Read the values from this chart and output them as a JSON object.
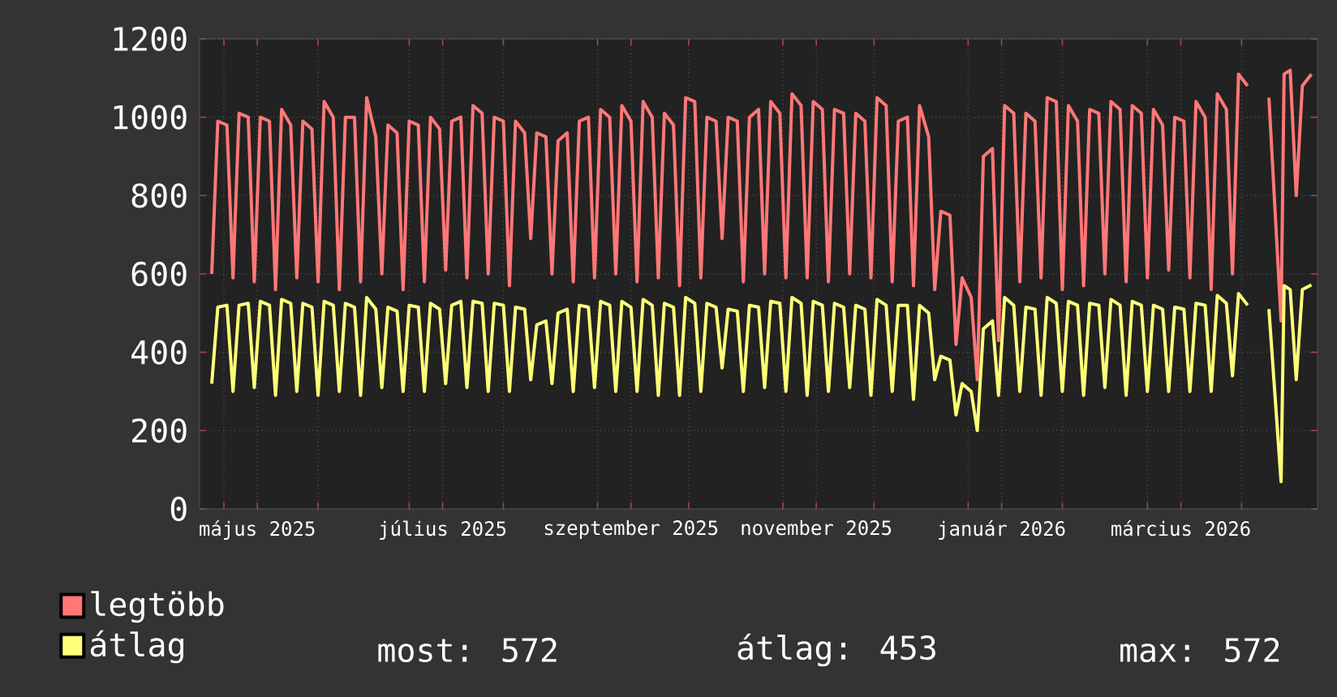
{
  "chart_data": {
    "type": "line",
    "x": [
      "2025-04-27",
      "2025-04-29",
      "2025-05-02",
      "2025-05-04",
      "2025-05-06",
      "2025-05-09",
      "2025-05-11",
      "2025-05-13",
      "2025-05-16",
      "2025-05-18",
      "2025-05-20",
      "2025-05-23",
      "2025-05-25",
      "2025-05-27",
      "2025-05-30",
      "2025-06-01",
      "2025-06-03",
      "2025-06-06",
      "2025-06-08",
      "2025-06-10",
      "2025-06-13",
      "2025-06-15",
      "2025-06-17",
      "2025-06-20",
      "2025-06-22",
      "2025-06-24",
      "2025-06-27",
      "2025-06-29",
      "2025-07-01",
      "2025-07-04",
      "2025-07-06",
      "2025-07-08",
      "2025-07-11",
      "2025-07-13",
      "2025-07-15",
      "2025-07-18",
      "2025-07-20",
      "2025-07-22",
      "2025-07-25",
      "2025-07-27",
      "2025-07-29",
      "2025-08-01",
      "2025-08-03",
      "2025-08-05",
      "2025-08-08",
      "2025-08-10",
      "2025-08-12",
      "2025-08-15",
      "2025-08-17",
      "2025-08-19",
      "2025-08-22",
      "2025-08-24",
      "2025-08-26",
      "2025-08-29",
      "2025-08-31",
      "2025-09-02",
      "2025-09-05",
      "2025-09-07",
      "2025-09-09",
      "2025-09-12",
      "2025-09-14",
      "2025-09-16",
      "2025-09-19",
      "2025-09-21",
      "2025-09-23",
      "2025-09-26",
      "2025-09-28",
      "2025-09-30",
      "2025-10-03",
      "2025-10-05",
      "2025-10-07",
      "2025-10-10",
      "2025-10-12",
      "2025-10-14",
      "2025-10-17",
      "2025-10-19",
      "2025-10-21",
      "2025-10-24",
      "2025-10-26",
      "2025-10-28",
      "2025-10-31",
      "2025-11-02",
      "2025-11-04",
      "2025-11-07",
      "2025-11-09",
      "2025-11-11",
      "2025-11-14",
      "2025-11-16",
      "2025-11-18",
      "2025-11-21",
      "2025-11-23",
      "2025-11-25",
      "2025-11-28",
      "2025-11-30",
      "2025-12-02",
      "2025-12-05",
      "2025-12-07",
      "2025-12-09",
      "2025-12-12",
      "2025-12-14",
      "2025-12-16",
      "2025-12-19",
      "2025-12-21",
      "2025-12-23",
      "2025-12-26",
      "2025-12-28",
      "2025-12-30",
      "2026-01-02",
      "2026-01-04",
      "2026-01-06",
      "2026-01-09",
      "2026-01-11",
      "2026-01-13",
      "2026-01-16",
      "2026-01-18",
      "2026-01-20",
      "2026-01-23",
      "2026-01-25",
      "2026-01-27",
      "2026-01-30",
      "2026-02-01",
      "2026-02-03",
      "2026-02-06",
      "2026-02-08",
      "2026-02-10",
      "2026-02-13",
      "2026-02-15",
      "2026-02-17",
      "2026-02-20",
      "2026-02-22",
      "2026-02-24",
      "2026-02-27",
      "2026-03-01",
      "2026-03-03",
      "2026-03-06",
      "2026-03-08",
      "2026-03-10",
      "2026-03-13",
      "2026-03-15",
      "2026-03-17",
      "2026-03-20",
      "2026-03-22",
      "2026-03-24",
      "2026-03-27",
      "2026-03-29",
      "2026-03-31",
      "2026-04-03",
      "2026-04-05",
      "2026-04-07",
      "2026-04-10",
      "2026-04-14",
      "2026-04-15",
      "2026-04-17",
      "2026-04-19",
      "2026-04-21",
      "2026-04-24"
    ],
    "series": [
      {
        "name": "legtöbb",
        "color": "#ff7777",
        "values": [
          600,
          990,
          980,
          590,
          1010,
          1000,
          580,
          1000,
          990,
          560,
          1020,
          980,
          590,
          990,
          970,
          580,
          1040,
          1000,
          560,
          1000,
          1000,
          580,
          1050,
          950,
          600,
          980,
          960,
          560,
          990,
          980,
          580,
          1000,
          970,
          610,
          990,
          1000,
          590,
          1030,
          1010,
          600,
          1000,
          990,
          570,
          990,
          960,
          690,
          960,
          950,
          600,
          940,
          960,
          580,
          990,
          1000,
          590,
          1020,
          1000,
          600,
          1030,
          990,
          580,
          1040,
          1000,
          590,
          1010,
          980,
          570,
          1050,
          1040,
          590,
          1000,
          990,
          690,
          1000,
          990,
          580,
          1000,
          1020,
          600,
          1040,
          1010,
          590,
          1060,
          1030,
          590,
          1040,
          1020,
          580,
          1020,
          1010,
          600,
          1010,
          990,
          590,
          1050,
          1030,
          580,
          990,
          1000,
          570,
          1030,
          950,
          560,
          760,
          750,
          420,
          590,
          540,
          330,
          900,
          920,
          430,
          1030,
          1010,
          580,
          1010,
          990,
          590,
          1050,
          1040,
          560,
          1030,
          990,
          570,
          1020,
          1010,
          600,
          1040,
          1020,
          580,
          1030,
          1010,
          590,
          1020,
          980,
          610,
          1000,
          990,
          590,
          1040,
          1000,
          560,
          1060,
          1020,
          600,
          1110,
          1080,
          null,
          null,
          1050,
          480,
          1110,
          1120,
          800,
          1080,
          1110
        ]
      },
      {
        "name": "átlag",
        "color": "#ffff77",
        "values": [
          320,
          515,
          520,
          300,
          520,
          525,
          310,
          530,
          520,
          290,
          535,
          525,
          300,
          525,
          515,
          290,
          530,
          520,
          300,
          525,
          515,
          290,
          540,
          510,
          310,
          515,
          505,
          300,
          520,
          515,
          300,
          525,
          510,
          320,
          520,
          530,
          310,
          530,
          525,
          300,
          525,
          520,
          300,
          515,
          510,
          330,
          470,
          480,
          320,
          500,
          510,
          300,
          520,
          515,
          310,
          530,
          520,
          300,
          530,
          515,
          300,
          535,
          520,
          290,
          525,
          515,
          290,
          540,
          525,
          300,
          525,
          515,
          360,
          510,
          505,
          300,
          520,
          515,
          310,
          530,
          525,
          300,
          540,
          525,
          290,
          530,
          520,
          300,
          525,
          515,
          310,
          520,
          510,
          290,
          535,
          520,
          300,
          520,
          520,
          280,
          520,
          500,
          330,
          390,
          380,
          240,
          320,
          300,
          200,
          460,
          480,
          290,
          540,
          520,
          300,
          515,
          510,
          290,
          540,
          525,
          300,
          530,
          520,
          290,
          525,
          520,
          310,
          535,
          520,
          290,
          530,
          520,
          300,
          520,
          510,
          300,
          515,
          510,
          300,
          525,
          520,
          300,
          545,
          525,
          340,
          550,
          520,
          null,
          null,
          510,
          70,
          570,
          560,
          330,
          560,
          572
        ]
      }
    ],
    "xlim": [
      "2025-04-23",
      "2026-04-26"
    ],
    "xticks": [
      {
        "value": "2025-05-01",
        "label": null
      },
      {
        "value": "2025-05-12",
        "label": "május 2025"
      },
      {
        "value": "2025-06-01",
        "label": null
      },
      {
        "value": "2025-07-01",
        "label": null
      },
      {
        "value": "2025-07-12",
        "label": "július 2025"
      },
      {
        "value": "2025-08-01",
        "label": null
      },
      {
        "value": "2025-09-01",
        "label": null
      },
      {
        "value": "2025-09-12",
        "label": "szeptember 2025"
      },
      {
        "value": "2025-10-01",
        "label": null
      },
      {
        "value": "2025-11-01",
        "label": null
      },
      {
        "value": "2025-11-12",
        "label": "november 2025"
      },
      {
        "value": "2025-12-01",
        "label": null
      },
      {
        "value": "2026-01-01",
        "label": null
      },
      {
        "value": "2026-01-12",
        "label": "január 2026"
      },
      {
        "value": "2026-02-01",
        "label": null
      },
      {
        "value": "2026-03-01",
        "label": null
      },
      {
        "value": "2026-03-12",
        "label": "március 2026"
      },
      {
        "value": "2026-04-01",
        "label": null
      }
    ],
    "ylim": [
      0,
      1200
    ],
    "yticks": [
      0,
      200,
      400,
      600,
      800,
      1000,
      1200
    ],
    "grid": true,
    "legend": "bottom",
    "annotations": [
      "most: 572",
      "átlag: 453",
      "max: 572"
    ]
  }
}
